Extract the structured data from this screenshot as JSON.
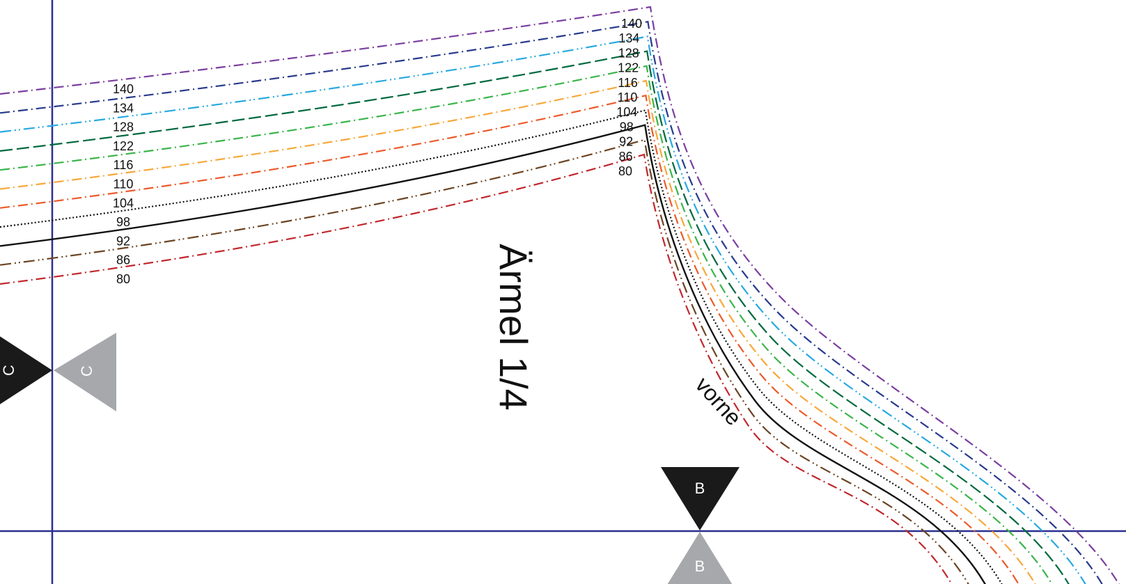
{
  "piece": {
    "title": "Ärmel 1/4",
    "side_label": "vorne"
  },
  "notches": {
    "c_label": "C",
    "b_label": "B",
    "black_color": "#1a1a1a",
    "gray_color": "#a7a8ab"
  },
  "guide_color": "#2a2f8f",
  "sizes": [
    {
      "label": "140",
      "color": "#7b3fa0",
      "dash": "dashdot"
    },
    {
      "label": "134",
      "color": "#283a8e",
      "dash": "dashdot"
    },
    {
      "label": "128",
      "color": "#26a9e0",
      "dash": "dashdotdot"
    },
    {
      "label": "122",
      "color": "#00693e",
      "dash": "dash"
    },
    {
      "label": "116",
      "color": "#3ab54a",
      "dash": "dashdot"
    },
    {
      "label": "110",
      "color": "#f7a83a",
      "dash": "dashdot"
    },
    {
      "label": "104",
      "color": "#ec5a2a",
      "dash": "dashdot"
    },
    {
      "label": "98",
      "color": "#111111",
      "dash": "dotted"
    },
    {
      "label": "92",
      "color": "#111111",
      "dash": "solid"
    },
    {
      "label": "86",
      "color": "#6b4423",
      "dash": "dashdotdot"
    },
    {
      "label": "80",
      "color": "#c1272d",
      "dash": "dashdot"
    }
  ]
}
